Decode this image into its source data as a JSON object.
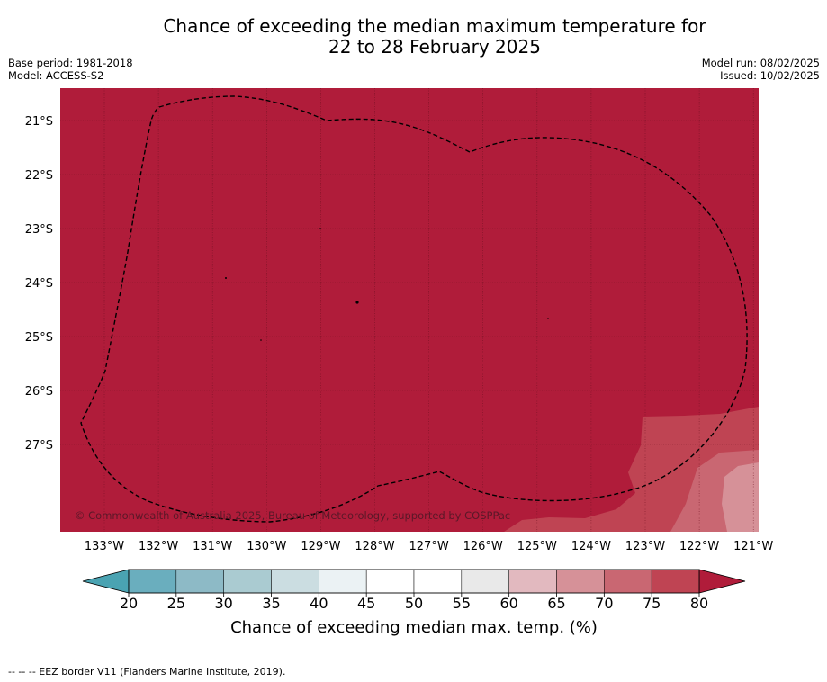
{
  "title_line1": "Chance of exceeding the median maximum temperature for",
  "title_line2": "22 to 28 February 2025",
  "base_period": "Base period: 1981-2018",
  "model": "Model: ACCESS-S2",
  "model_run": "Model run: 08/02/2025",
  "issued": "Issued: 10/02/2025",
  "copyright": "© Commonwealth of Australia 2025, Bureau of Meteorology, supported by COSPPac",
  "lat_labels": [
    "21°S",
    "22°S",
    "23°S",
    "24°S",
    "25°S",
    "26°S",
    "27°S"
  ],
  "lon_labels": [
    "133°W",
    "132°W",
    "131°W",
    "130°W",
    "129°W",
    "128°W",
    "127°W",
    "126°W",
    "125°W",
    "124°W",
    "123°W",
    "122°W",
    "121°W"
  ],
  "colorbar": {
    "ticks": [
      "20",
      "25",
      "30",
      "35",
      "40",
      "45",
      "50",
      "55",
      "60",
      "65",
      "70",
      "75",
      "80"
    ],
    "colors": [
      "#6aaebe",
      "#8dbac6",
      "#aacbd1",
      "#cbdde1",
      "#ebf2f4",
      "#ffffff",
      "#ffffff",
      "#e9e9e9",
      "#e2b9bf",
      "#d69198",
      "#c96772",
      "#bf4453"
    ],
    "under_color": "#4aa3b2",
    "over_color": "#b01c3a",
    "label": "Chance of exceeding median max. temp. (%)"
  },
  "map_colors": {
    "above_80": "#b01c3a",
    "band_75_80": "#bf4453",
    "band_70_75": "#c96772",
    "band_65_70": "#d69198"
  },
  "footer": "--  --  -- EEZ border V11 (Flanders Marine Institute, 2019)."
}
